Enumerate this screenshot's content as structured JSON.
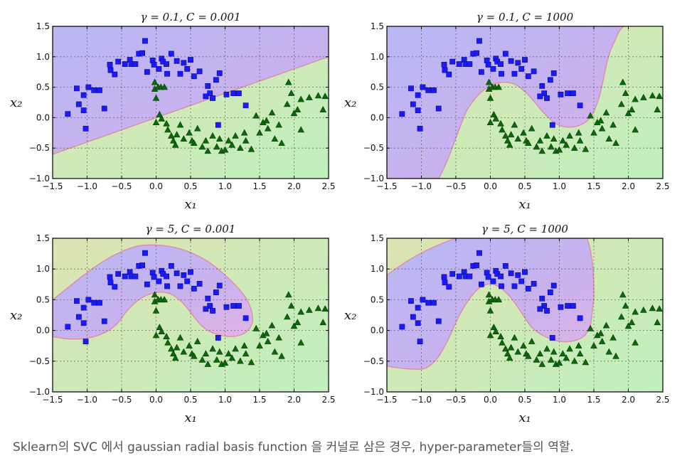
{
  "caption": "Sklearn의 SVC 에서 gaussian radial basis function 을 커널로 삼은 경우, hyper-parameter들의 역할.",
  "colors": {
    "class0_region": "#c9b0f2",
    "class1_region": "#d3e6a8",
    "square": "#1a1aff",
    "triangle": "#0a6a0a",
    "boundary": "#e08aa8"
  },
  "chart_data": [
    {
      "type": "scatter",
      "title": "γ = 0.1, C = 0.001",
      "xlabel": "x₁",
      "ylabel": "x₂",
      "xlim": [
        -1.5,
        2.5
      ],
      "ylim": [
        -1.0,
        1.5
      ],
      "xticks": [
        "−1.5",
        "−1.0",
        "−0.5",
        "0.0",
        "0.5",
        "1.0",
        "1.5",
        "2.0",
        "2.5"
      ],
      "yticks": [
        "−1.0",
        "−0.5",
        "0.0",
        "0.5",
        "1.0",
        "1.5"
      ],
      "grid": true,
      "boundary": "linear"
    },
    {
      "type": "scatter",
      "title": "γ = 0.1, C = 1000",
      "xlabel": "x₁",
      "ylabel": "x₂",
      "xlim": [
        -1.5,
        2.5
      ],
      "ylim": [
        -1.0,
        1.5
      ],
      "xticks": [
        "−1.5",
        "−1.0",
        "−0.5",
        "0.0",
        "0.5",
        "1.0",
        "1.5",
        "2.0",
        "2.5"
      ],
      "yticks": [
        "−1.0",
        "−0.5",
        "0.0",
        "0.5",
        "1.0",
        "1.5"
      ],
      "grid": true,
      "boundary": "smooth-curve"
    },
    {
      "type": "scatter",
      "title": "γ = 5, C = 0.001",
      "xlabel": "x₁",
      "ylabel": "x₂",
      "xlim": [
        -1.5,
        2.5
      ],
      "ylim": [
        -1.0,
        1.5
      ],
      "xticks": [
        "−1.5",
        "−1.0",
        "−0.5",
        "0.0",
        "0.5",
        "1.0",
        "1.5",
        "2.0",
        "2.5"
      ],
      "yticks": [
        "−1.0",
        "−0.5",
        "0.0",
        "0.5",
        "1.0",
        "1.5"
      ],
      "grid": true,
      "boundary": "moon-band"
    },
    {
      "type": "scatter",
      "title": "γ = 5, C = 1000",
      "xlabel": "x₁",
      "ylabel": "x₂",
      "xlim": [
        -1.5,
        2.5
      ],
      "ylim": [
        -1.0,
        1.5
      ],
      "xticks": [
        "−1.5",
        "−1.0",
        "−0.5",
        "0.0",
        "0.5",
        "1.0",
        "1.5",
        "2.0",
        "2.5"
      ],
      "yticks": [
        "−1.0",
        "−0.5",
        "0.0",
        "0.5",
        "1.0",
        "1.5"
      ],
      "grid": true,
      "boundary": "tight-curve"
    }
  ],
  "points": {
    "squares": [
      [
        -1.28,
        0.06
      ],
      [
        -1.15,
        0.48
      ],
      [
        -1.12,
        0.22
      ],
      [
        -1.05,
        0.37
      ],
      [
        -1.05,
        0.12
      ],
      [
        -1.02,
        -0.18
      ],
      [
        -0.98,
        0.5
      ],
      [
        -0.9,
        0.45
      ],
      [
        -0.82,
        0.45
      ],
      [
        -0.75,
        0.15
      ],
      [
        -0.67,
        0.87
      ],
      [
        -0.66,
        0.78
      ],
      [
        -0.6,
        0.71
      ],
      [
        -0.55,
        0.92
      ],
      [
        -0.45,
        0.88
      ],
      [
        -0.38,
        0.95
      ],
      [
        -0.36,
        0.88
      ],
      [
        -0.3,
        0.88
      ],
      [
        -0.25,
        1.05
      ],
      [
        -0.2,
        1.06
      ],
      [
        -0.16,
        1.26
      ],
      [
        -0.13,
        0.75
      ],
      [
        -0.05,
        0.94
      ],
      [
        -0.03,
        0.87
      ],
      [
        0.04,
        0.8
      ],
      [
        0.08,
        0.97
      ],
      [
        0.1,
        0.92
      ],
      [
        0.15,
        0.88
      ],
      [
        0.16,
        0.72
      ],
      [
        0.22,
        1.05
      ],
      [
        0.3,
        0.93
      ],
      [
        0.35,
        0.72
      ],
      [
        0.4,
        0.9
      ],
      [
        0.45,
        0.8
      ],
      [
        0.5,
        0.95
      ],
      [
        0.55,
        0.68
      ],
      [
        0.63,
        0.76
      ],
      [
        0.75,
        0.52
      ],
      [
        0.78,
        0.4
      ],
      [
        0.82,
        0.32
      ],
      [
        0.87,
        0.62
      ],
      [
        0.92,
        0.73
      ],
      [
        0.9,
        -0.12
      ],
      [
        1.02,
        0.38
      ],
      [
        1.12,
        0.4
      ],
      [
        1.2,
        0.4
      ],
      [
        1.3,
        0.2
      ],
      [
        0.72,
        0.35
      ]
    ],
    "triangles": [
      [
        -0.02,
        0.58
      ],
      [
        -0.02,
        0.47
      ],
      [
        0.0,
        0.32
      ],
      [
        0.03,
        0.5
      ],
      [
        0.07,
        0.5
      ],
      [
        0.12,
        0.5
      ],
      [
        0.05,
        0.05
      ],
      [
        0.0,
        -0.08
      ],
      [
        0.08,
        -0.02
      ],
      [
        0.15,
        -0.1
      ],
      [
        0.17,
        -0.2
      ],
      [
        0.22,
        -0.3
      ],
      [
        0.25,
        -0.38
      ],
      [
        0.28,
        -0.45
      ],
      [
        0.3,
        -0.28
      ],
      [
        0.35,
        -0.12
      ],
      [
        0.4,
        -0.35
      ],
      [
        0.48,
        -0.25
      ],
      [
        0.52,
        -0.38
      ],
      [
        0.55,
        -0.42
      ],
      [
        0.6,
        -0.18
      ],
      [
        0.67,
        -0.48
      ],
      [
        0.72,
        -0.38
      ],
      [
        0.75,
        -0.55
      ],
      [
        0.82,
        -0.3
      ],
      [
        0.88,
        -0.48
      ],
      [
        0.92,
        -0.35
      ],
      [
        0.95,
        -0.55
      ],
      [
        1.0,
        -0.53
      ],
      [
        1.05,
        -0.38
      ],
      [
        1.1,
        -0.45
      ],
      [
        1.15,
        -0.3
      ],
      [
        1.22,
        -0.5
      ],
      [
        1.28,
        -0.25
      ],
      [
        1.3,
        -0.38
      ],
      [
        1.38,
        -0.52
      ],
      [
        1.45,
        0.03
      ],
      [
        1.5,
        -0.25
      ],
      [
        1.55,
        -0.08
      ],
      [
        1.6,
        -0.05
      ],
      [
        1.62,
        -0.18
      ],
      [
        1.68,
        0.08
      ],
      [
        1.72,
        -0.35
      ],
      [
        1.78,
        -0.12
      ],
      [
        1.82,
        -0.42
      ],
      [
        1.9,
        0.22
      ],
      [
        1.92,
        0.58
      ],
      [
        1.96,
        0.4
      ],
      [
        2.0,
        0.07
      ],
      [
        2.05,
        0.13
      ],
      [
        2.1,
        0.3
      ],
      [
        2.22,
        0.33
      ],
      [
        2.35,
        0.36
      ],
      [
        2.42,
        0.13
      ],
      [
        2.1,
        -0.2
      ],
      [
        2.45,
        0.35
      ]
    ]
  }
}
